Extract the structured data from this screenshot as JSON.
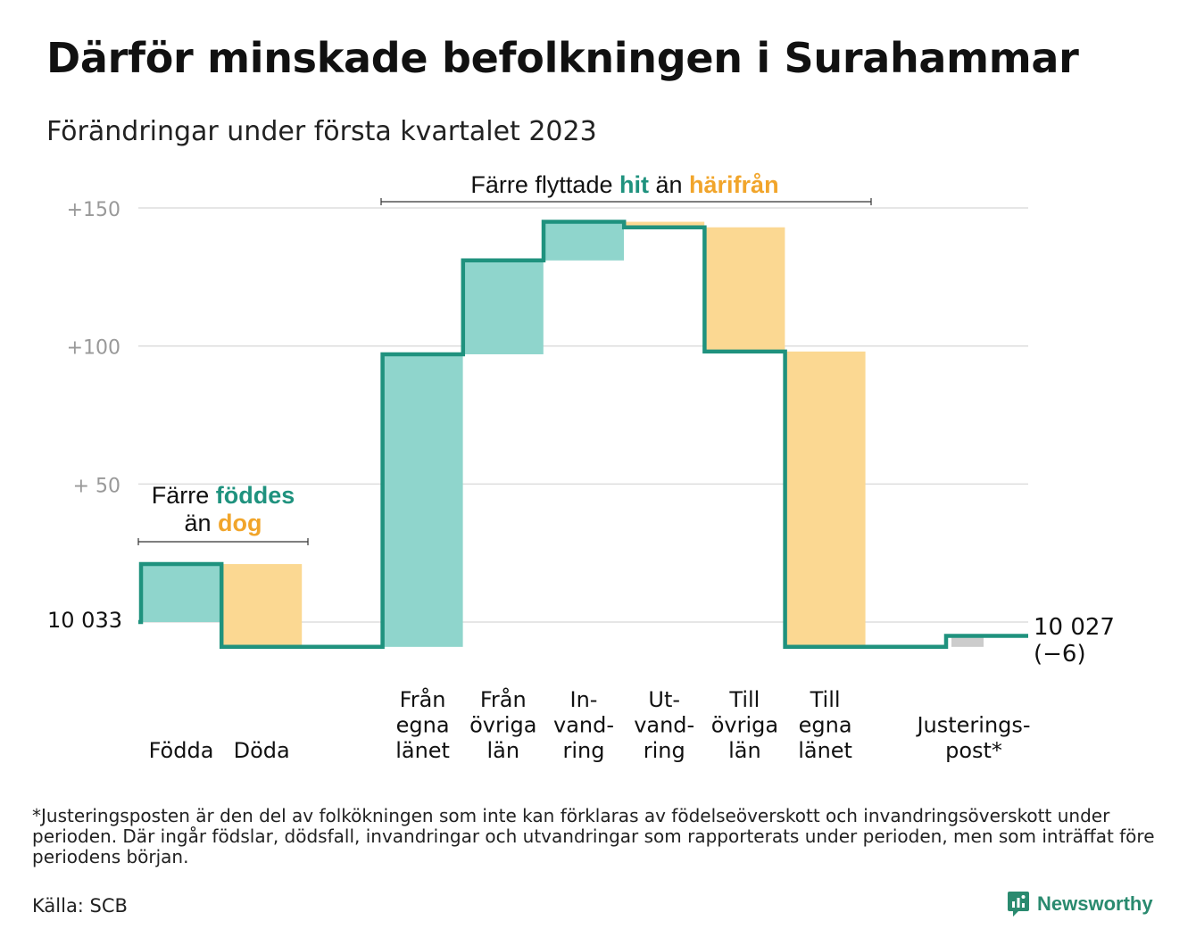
{
  "title": "Därför minskade befolkningen i Surahammar",
  "subtitle": "Förändringar under första kvartalet 2023",
  "footnote": "*Justeringsposten är den del av folkökningen som inte kan förklaras av födelseöverskott och invandringsöverskott under perioden. Där ingår födslar, dödsfall, invandringar och utvandringar som rapporterats under perioden, men som inträffat före periodens början.",
  "source": "Källa: SCB",
  "brand": {
    "name": "Newsworthy",
    "logo_icon": "newsworthy-logo-icon"
  },
  "colors": {
    "line": "#1f927e",
    "increase": "#8fd5cc",
    "decrease": "#fbd892",
    "adjustment": "#cccccc",
    "teal_text": "#1f927e",
    "orange_text": "#f1a52b",
    "grid": "#dddddd",
    "axis_text": "#999999"
  },
  "chart_data": {
    "type": "waterfall",
    "title": "Därför minskade befolkningen i Surahammar",
    "subtitle": "Förändringar under första kvartalet 2023",
    "start_value": 10033,
    "start_label": "10 033",
    "end_value": 10027,
    "end_label": "10 027",
    "end_change_label": "(−6)",
    "y_axis": {
      "range_relative": [
        -10,
        150
      ],
      "ticks": [
        {
          "value": 150,
          "label": "+150"
        },
        {
          "value": 100,
          "label": "+100"
        },
        {
          "value": 50,
          "label": "+ 50"
        }
      ],
      "grid": true
    },
    "steps": [
      {
        "category": "Födda",
        "label_lines": [
          "Födda"
        ],
        "change": 21,
        "kind": "increase"
      },
      {
        "category": "Döda",
        "label_lines": [
          "Döda"
        ],
        "change": -30,
        "kind": "decrease"
      },
      {
        "category": "",
        "label_lines": [],
        "change": 0,
        "kind": "none"
      },
      {
        "category": "Från egna länet",
        "label_lines": [
          "Från",
          "egna",
          "länet"
        ],
        "change": 106,
        "kind": "increase"
      },
      {
        "category": "Från övriga län",
        "label_lines": [
          "Från",
          "övriga",
          "län"
        ],
        "change": 34,
        "kind": "increase"
      },
      {
        "category": "Invandring",
        "label_lines": [
          "In-",
          "vand-",
          "ring"
        ],
        "change": 14,
        "kind": "increase"
      },
      {
        "category": "Utvandring",
        "label_lines": [
          "Ut-",
          "vand-",
          "ring"
        ],
        "change": -2,
        "kind": "decrease"
      },
      {
        "category": "Till övriga län",
        "label_lines": [
          "Till",
          "övriga",
          "län"
        ],
        "change": -45,
        "kind": "decrease"
      },
      {
        "category": "Till egna länet",
        "label_lines": [
          "Till",
          "egna",
          "länet"
        ],
        "change": -107,
        "kind": "decrease"
      },
      {
        "category": "",
        "label_lines": [],
        "change": 0,
        "kind": "none"
      },
      {
        "category": "Justeringspost*",
        "label_lines": [
          "Justerings-",
          "post*"
        ],
        "change": 4,
        "kind": "adjustment"
      }
    ],
    "annotations": [
      {
        "name": "births-deaths",
        "lines": [
          [
            {
              "text": "Färre ",
              "style": "plain"
            },
            {
              "text": "föddes",
              "style": "teal"
            }
          ],
          [
            {
              "text": "än ",
              "style": "plain"
            },
            {
              "text": "dog",
              "style": "orange"
            }
          ]
        ]
      },
      {
        "name": "migration",
        "lines": [
          [
            {
              "text": "Färre flyttade ",
              "style": "plain"
            },
            {
              "text": "hit",
              "style": "teal"
            },
            {
              "text": " än ",
              "style": "plain"
            },
            {
              "text": "härifrån",
              "style": "orange"
            }
          ]
        ]
      }
    ]
  }
}
